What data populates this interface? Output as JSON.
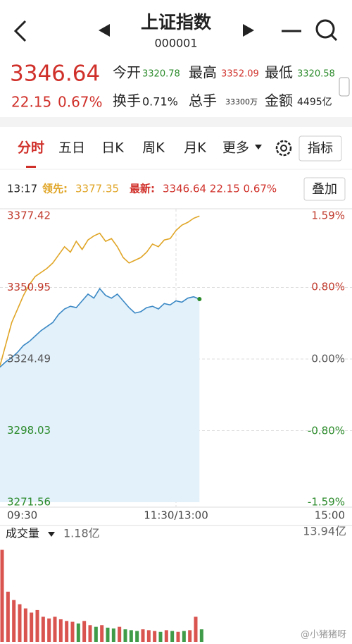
{
  "header": {
    "title": "上证指数",
    "code": "000001"
  },
  "quote": {
    "price": "3346.64",
    "change": "22.15",
    "change_pct": "0.67%",
    "stats": [
      {
        "label": "今开",
        "value": "3320.78"
      },
      {
        "label": "最高",
        "value": "3352.09"
      },
      {
        "label": "最低",
        "value": "3320.58"
      },
      {
        "label": "换手",
        "value": "0.71%"
      },
      {
        "label": "总手",
        "value": "33300万"
      },
      {
        "label": "金额",
        "value": "4495亿"
      }
    ]
  },
  "tabs": [
    "分时",
    "五日",
    "日K",
    "周K",
    "月K",
    "更多"
  ],
  "indicator_button": "指标",
  "info": {
    "time": "13:17",
    "lead_label": "领先:",
    "lead_value": "3377.35",
    "latest_label": "最新:",
    "latest_value": "3346.64 22.15 0.67%"
  },
  "overlay_button": "叠加",
  "chart_data": [
    {
      "type": "line",
      "x": [
        0,
        4,
        8,
        12,
        16,
        20,
        24,
        28,
        32,
        36,
        40,
        44,
        48,
        52,
        56,
        60,
        64,
        68,
        72,
        76,
        80,
        84,
        88,
        92,
        96,
        100,
        104,
        108,
        112,
        116,
        120,
        124,
        128,
        132,
        136
      ],
      "xlim": [
        0,
        240
      ],
      "xticks": [
        {
          "value": 0,
          "label": "09:30"
        },
        {
          "value": 120,
          "label": "11:30/13:00"
        },
        {
          "value": 240,
          "label": "15:00"
        }
      ],
      "ylim": [
        3271.56,
        3377.42
      ],
      "yticks": [
        3377.42,
        3350.95,
        3324.49,
        3298.03,
        3271.56
      ],
      "y2lim": [
        -1.59,
        1.59
      ],
      "y2ticks": [
        {
          "value": 1.59,
          "label": "1.59%"
        },
        {
          "value": 0.8,
          "label": "0.80%"
        },
        {
          "value": 0,
          "label": "0.00%"
        },
        {
          "value": -0.8,
          "label": "-0.80%"
        },
        {
          "value": -1.59,
          "label": "-1.59%"
        }
      ],
      "grid": true,
      "series": [
        {
          "color": "#3a88c4",
          "fill": "#e3f1fb",
          "values": [
            3321.5,
            3323.5,
            3325,
            3327,
            3329.5,
            3331,
            3333,
            3335,
            3336.5,
            3338,
            3341,
            3343,
            3344,
            3343.5,
            3346,
            3348.5,
            3347,
            3350.5,
            3348,
            3347,
            3348.5,
            3346,
            3343.5,
            3341.5,
            3342,
            3343.5,
            3344,
            3343,
            3345,
            3344.5,
            3346,
            3345.5,
            3347,
            3347.5,
            3346.64
          ]
        },
        {
          "color": "#e0a526",
          "values": [
            3322,
            3330,
            3338,
            3343,
            3348,
            3352,
            3355,
            3356.5,
            3358,
            3360,
            3363,
            3366,
            3364,
            3368,
            3365,
            3368.5,
            3370,
            3371,
            3368,
            3369,
            3366,
            3362,
            3360,
            3361,
            3362,
            3364,
            3367,
            3366,
            3368.5,
            3369,
            3372,
            3374,
            3375,
            3376.5,
            3377.35
          ]
        }
      ]
    },
    {
      "type": "bar",
      "x": [
        0,
        4,
        8,
        12,
        16,
        20,
        24,
        28,
        32,
        36,
        40,
        44,
        48,
        52,
        56,
        60,
        64,
        68,
        72,
        76,
        80,
        84,
        88,
        92,
        96,
        100,
        104,
        108,
        112,
        116,
        120,
        124,
        128,
        132,
        136
      ],
      "xlim": [
        0,
        240
      ],
      "values": [
        1.1,
        0.6,
        0.5,
        0.45,
        0.4,
        0.35,
        0.38,
        0.3,
        0.28,
        0.3,
        0.27,
        0.25,
        0.24,
        0.22,
        0.25,
        0.2,
        0.18,
        0.2,
        0.17,
        0.16,
        0.18,
        0.15,
        0.14,
        0.13,
        0.15,
        0.14,
        0.13,
        0.12,
        0.14,
        0.13,
        0.12,
        0.13,
        0.14,
        0.3,
        0.15
      ],
      "up_color": "#d9534f",
      "down_color": "#3f9b48",
      "ylim": [
        0,
        1.18
      ],
      "yticks": [
        {
          "value": 1.18,
          "label": "1.18亿"
        }
      ]
    }
  ],
  "volume_header": {
    "label": "成交量",
    "total": "13.94亿"
  },
  "watermark": "@小猪猪呀"
}
